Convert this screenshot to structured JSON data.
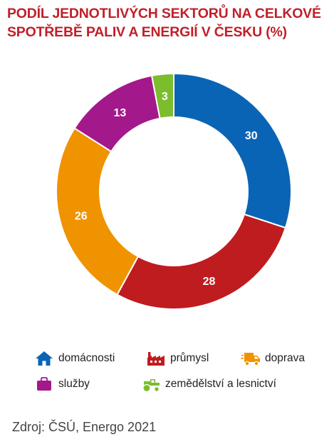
{
  "title_line1": "PODÍL JEDNOTLIVÝCH SEKTORŮ NA CELKOVÉ",
  "title_line2": "SPOTŘEBĚ PALIV A ENERGIÍ V ČESKU (%)",
  "chart_data": {
    "type": "pie",
    "donut": true,
    "title": "PODÍL JEDNOTLIVÝCH SEKTORŮ NA CELKOVÉ SPOTŘEBĚ PALIV A ENERGIÍ V ČESKU (%)",
    "categories": [
      "domácnosti",
      "průmysl",
      "doprava",
      "služby",
      "zemědělství a lesnictví"
    ],
    "values": [
      30,
      28,
      26,
      13,
      3
    ],
    "colors": [
      "#0a64b5",
      "#bf1c1f",
      "#ef9300",
      "#a3188b",
      "#7cbd2e"
    ],
    "data_labels": [
      "30",
      "28",
      "26",
      "13",
      "3"
    ],
    "legend_placement": "bottom"
  },
  "legend": [
    {
      "label": "domácnosti",
      "icon": "house-icon",
      "color": "#0a64b5"
    },
    {
      "label": "průmysl",
      "icon": "factory-icon",
      "color": "#bf1c1f"
    },
    {
      "label": "doprava",
      "icon": "truck-icon",
      "color": "#ef9300"
    },
    {
      "label": "služby",
      "icon": "briefcase-icon",
      "color": "#a3188b"
    },
    {
      "label": "zemědělství a lesnictví",
      "icon": "tractor-icon",
      "color": "#7cbd2e"
    }
  ],
  "source": "Zdroj: ČSÚ, Energo 2021"
}
